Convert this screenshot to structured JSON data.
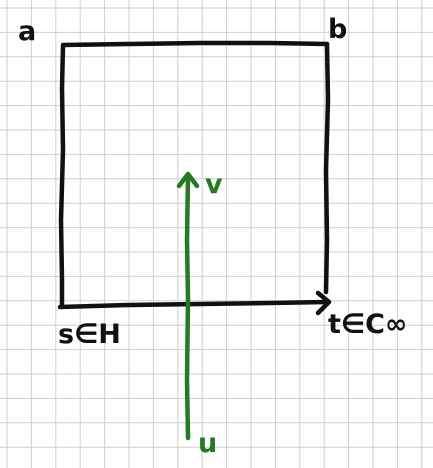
{
  "labels": {
    "top_left": "a",
    "top_right": "b",
    "bottom_left": "s∈H",
    "bottom_right": "t∈C∞",
    "green_top": "v",
    "green_bottom": "u"
  },
  "colors": {
    "grid": "#cfcfcf",
    "ink": "#111111",
    "green": "#237a23",
    "background": "#ffffff"
  },
  "grid": {
    "visible": true
  }
}
